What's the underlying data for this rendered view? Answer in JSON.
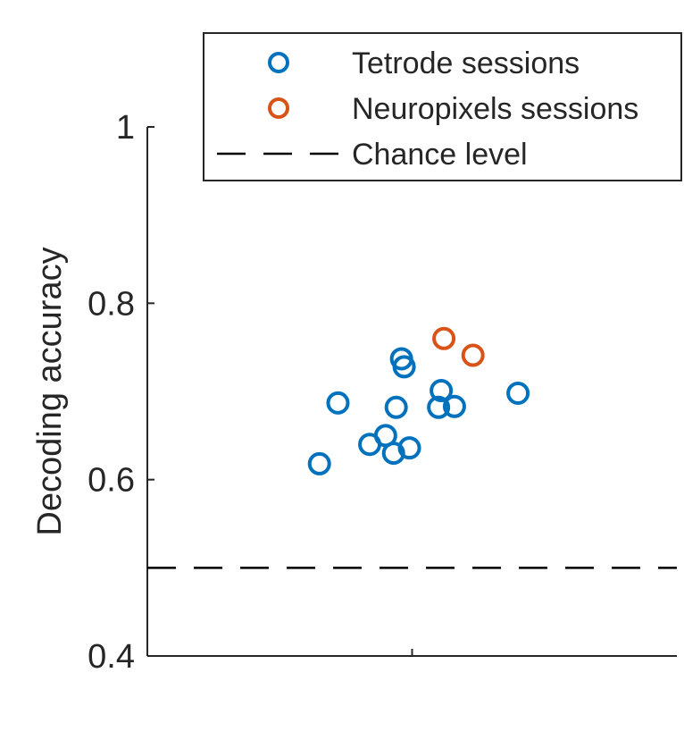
{
  "chart_data": {
    "type": "scatter",
    "title": "",
    "xlabel": "",
    "ylabel": "Decoding accuracy",
    "ylim": [
      0.4,
      1.0
    ],
    "xlim": [
      -1,
      1
    ],
    "yticks": [
      0.4,
      0.6,
      0.8,
      1
    ],
    "ytick_labels": [
      "0.4",
      "0.6",
      "0.8",
      "1"
    ],
    "xticks": [
      0
    ],
    "grid": false,
    "legend_position": "top-right",
    "series": [
      {
        "name": "Tetrode sessions",
        "color": "#0072BD",
        "marker": "open-circle",
        "points": [
          {
            "x": -0.35,
            "y": 0.618
          },
          {
            "x": -0.28,
            "y": 0.687
          },
          {
            "x": -0.16,
            "y": 0.64
          },
          {
            "x": -0.1,
            "y": 0.65
          },
          {
            "x": -0.07,
            "y": 0.63
          },
          {
            "x": -0.01,
            "y": 0.636
          },
          {
            "x": -0.06,
            "y": 0.682
          },
          {
            "x": -0.04,
            "y": 0.737
          },
          {
            "x": -0.03,
            "y": 0.728
          },
          {
            "x": 0.11,
            "y": 0.701
          },
          {
            "x": 0.1,
            "y": 0.682
          },
          {
            "x": 0.16,
            "y": 0.683
          },
          {
            "x": 0.4,
            "y": 0.698
          }
        ]
      },
      {
        "name": "Neuropixels sessions",
        "color": "#D95319",
        "marker": "open-circle",
        "points": [
          {
            "x": 0.12,
            "y": 0.76
          },
          {
            "x": 0.23,
            "y": 0.741
          }
        ]
      }
    ],
    "reference_lines": [
      {
        "name": "Chance level",
        "y": 0.5,
        "style": "dashed",
        "color": "#000000"
      }
    ]
  }
}
